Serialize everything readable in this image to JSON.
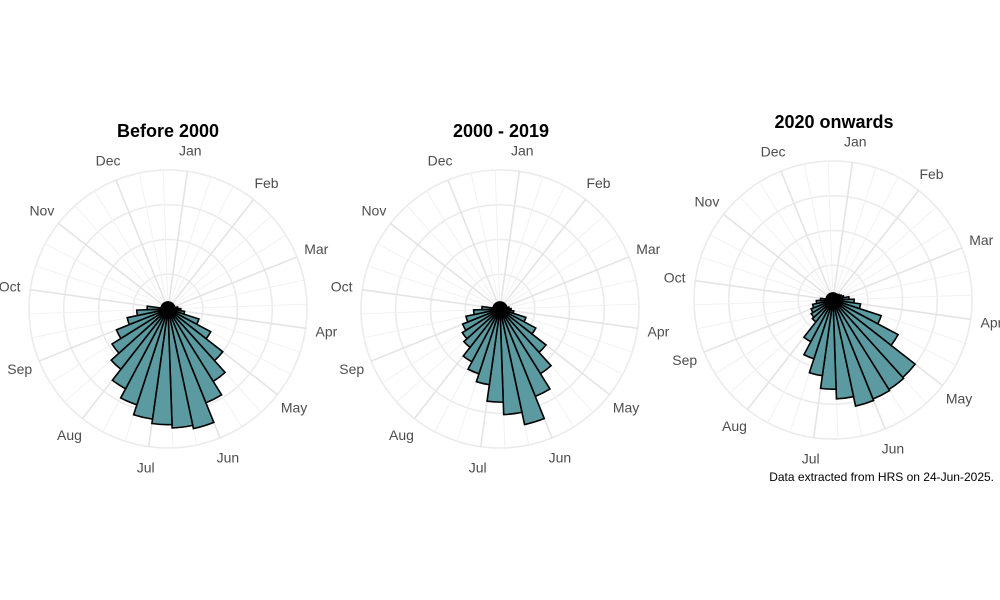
{
  "chart_data": [
    {
      "type": "bar",
      "polar": true,
      "title": "Before 2000",
      "categories": [
        "Jan",
        "Feb",
        "Mar",
        "Apr",
        "May",
        "Jun",
        "Jul",
        "Aug",
        "Sep",
        "Oct",
        "Nov",
        "Dec"
      ],
      "values": [
        0.05,
        0.05,
        0.05,
        0.12,
        0.5,
        0.88,
        0.8,
        0.55,
        0.3,
        0.05,
        0.05,
        0.05
      ],
      "bar_color": "#5b9aa0",
      "grid": true
    },
    {
      "type": "bar",
      "polar": true,
      "title": "2000 - 2019",
      "categories": [
        "Jan",
        "Feb",
        "Mar",
        "Apr",
        "May",
        "Jun",
        "Jul",
        "Aug",
        "Sep",
        "Oct",
        "Nov",
        "Dec"
      ],
      "values": [
        0.05,
        0.05,
        0.05,
        0.1,
        0.42,
        0.85,
        0.55,
        0.35,
        0.25,
        0.05,
        0.05,
        0.05
      ],
      "bar_color": "#5b9aa0",
      "grid": true
    },
    {
      "type": "bar",
      "polar": true,
      "title": "2020 onwards",
      "categories": [
        "Jan",
        "Feb",
        "Mar",
        "Apr",
        "May",
        "Jun",
        "Jul",
        "Aug",
        "Sep",
        "Oct",
        "Nov",
        "Dec"
      ],
      "values": [
        0.05,
        0.05,
        0.08,
        0.2,
        0.75,
        0.78,
        0.55,
        0.2,
        0.15,
        0.05,
        0.05,
        0.05
      ],
      "bar_color": "#5b9aa0",
      "grid": true
    }
  ],
  "caption": "Data extracted from HRS on 24-Jun-2025."
}
